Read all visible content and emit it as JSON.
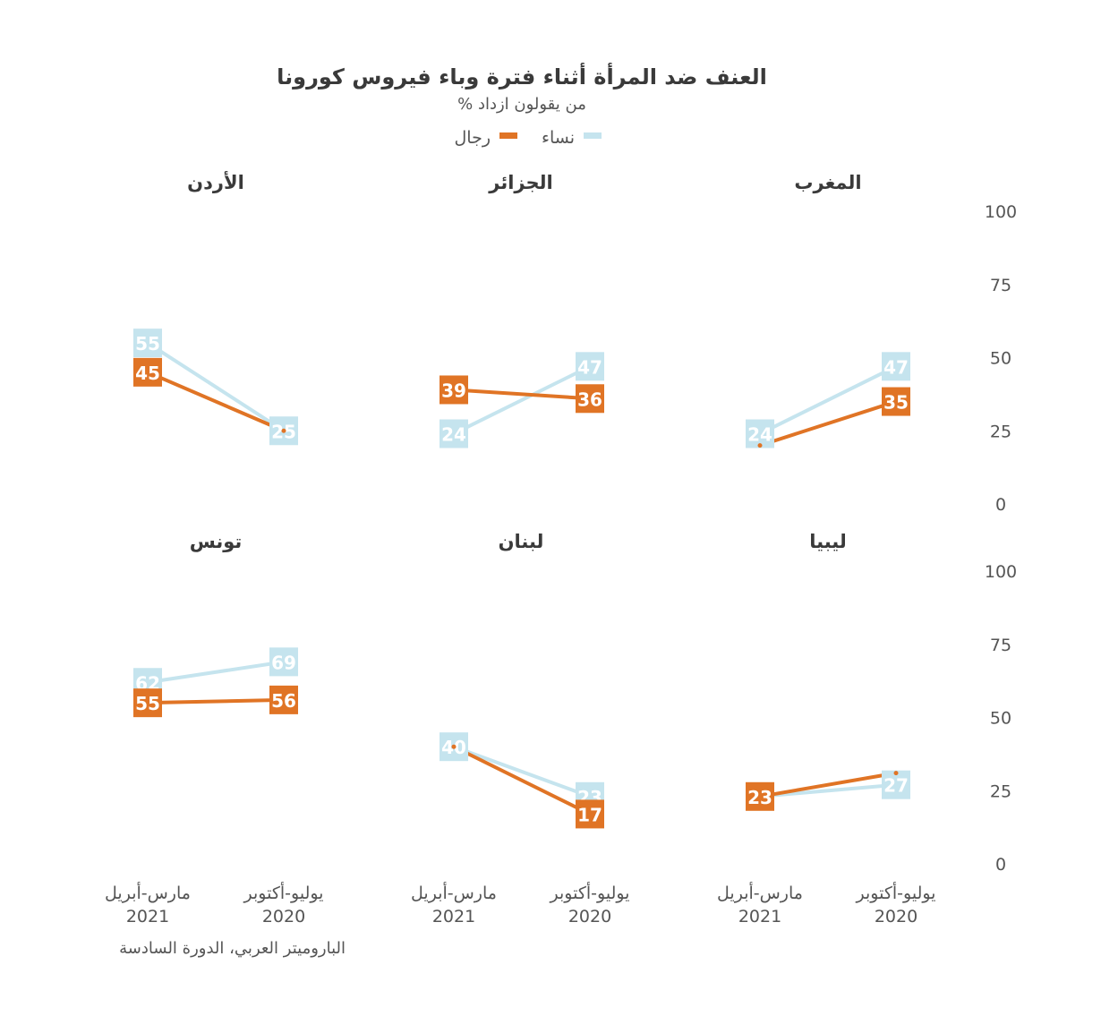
{
  "chart_data": {
    "type": "line",
    "title": "العنف ضد المرأة أثناء فترة وباء فيروس كورونا",
    "subtitle": "% من يقولون ازداد",
    "legend": {
      "placement": "top-center",
      "entries": [
        {
          "name": "نساء",
          "color": "#c5e4ee"
        },
        {
          "name": "رجال",
          "color": "#e07425"
        }
      ]
    },
    "ylim": [
      0,
      100
    ],
    "yticks": [
      "0",
      "25",
      "50",
      "75",
      "100"
    ],
    "yticks_values": [
      0,
      25,
      50,
      75,
      100
    ],
    "categories": [
      {
        "line1": "يوليو-أكتوبر",
        "line2": "2020"
      },
      {
        "line1": "مارس-أبريل",
        "line2": "2021"
      }
    ],
    "grid": false,
    "panels": [
      {
        "country": "المغرب",
        "series": [
          {
            "name": "نساء",
            "values": [
              47,
              24
            ]
          },
          {
            "name": "رجال",
            "values": [
              35,
              20
            ]
          }
        ]
      },
      {
        "country": "الجزائر",
        "series": [
          {
            "name": "نساء",
            "values": [
              47,
              24
            ]
          },
          {
            "name": "رجال",
            "values": [
              36,
              39
            ]
          }
        ]
      },
      {
        "country": "الأردن",
        "series": [
          {
            "name": "نساء",
            "values": [
              25,
              55
            ]
          },
          {
            "name": "رجال",
            "values": [
              25,
              45
            ]
          }
        ]
      },
      {
        "country": "ليبيا",
        "series": [
          {
            "name": "نساء",
            "values": [
              27,
              23
            ]
          },
          {
            "name": "رجال",
            "values": [
              31,
              23
            ]
          }
        ]
      },
      {
        "country": "لبنان",
        "series": [
          {
            "name": "نساء",
            "values": [
              23,
              40
            ]
          },
          {
            "name": "رجال",
            "values": [
              17,
              40
            ]
          }
        ]
      },
      {
        "country": "تونس",
        "series": [
          {
            "name": "نساء",
            "values": [
              69,
              62
            ]
          },
          {
            "name": "رجال",
            "values": [
              56,
              55
            ]
          }
        ]
      }
    ],
    "labeled_values": [
      [
        [
          "47",
          "24"
        ],
        [
          "35",
          ""
        ]
      ],
      [
        [
          "47",
          "24"
        ],
        [
          "36",
          "39"
        ]
      ],
      [
        [
          "25",
          "55"
        ],
        [
          "",
          "45"
        ]
      ],
      [
        [
          "27",
          ""
        ],
        [
          "",
          "23"
        ]
      ],
      [
        [
          "23",
          "40"
        ],
        [
          "17",
          ""
        ]
      ],
      [
        [
          "69",
          "62"
        ],
        [
          "56",
          "55"
        ]
      ]
    ]
  },
  "source": "الباروميتر العربي، الدورة السادسة"
}
